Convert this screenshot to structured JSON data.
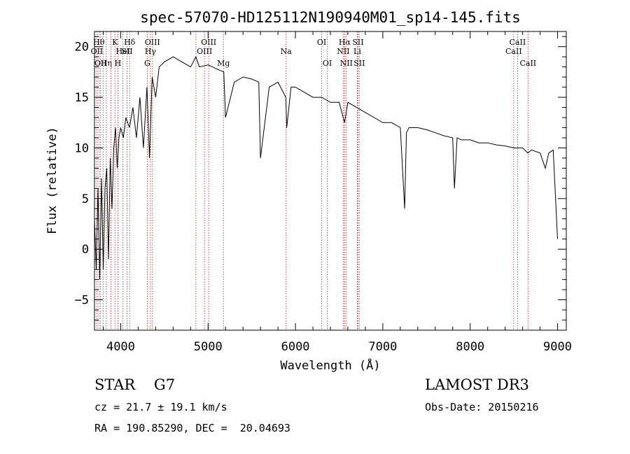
{
  "chart_data": {
    "type": "line",
    "title": "spec-57070-HD125112N190940M01_sp14-145.fits",
    "xlabel": "Wavelength (Å)",
    "ylabel": "Flux (relative)",
    "xlim": [
      3700,
      9100
    ],
    "ylim": [
      -8,
      21.5
    ],
    "xticks": [
      4000,
      5000,
      6000,
      7000,
      8000,
      9000
    ],
    "yticks": [
      -5,
      0,
      5,
      10,
      15,
      20
    ],
    "xtick_labels": [
      "4000",
      "5000",
      "6000",
      "7000",
      "8000",
      "9000"
    ],
    "ytick_labels": [
      "−5",
      "0",
      "5",
      "10",
      "15",
      "20"
    ],
    "grid": false,
    "series": [
      {
        "color": "#000000",
        "x": [
          3700,
          3720,
          3740,
          3760,
          3780,
          3800,
          3820,
          3840,
          3860,
          3880,
          3900,
          3920,
          3940,
          3960,
          3980,
          4000,
          4030,
          4060,
          4100,
          4140,
          4180,
          4220,
          4260,
          4300,
          4330,
          4360,
          4400,
          4440,
          4500,
          4600,
          4700,
          4800,
          4860,
          4900,
          5000,
          5100,
          5180,
          5200,
          5300,
          5400,
          5500,
          5580,
          5600,
          5700,
          5800,
          5890,
          5900,
          5950,
          6000,
          6100,
          6200,
          6300,
          6400,
          6500,
          6562,
          6600,
          6700,
          6800,
          6900,
          7000,
          7100,
          7200,
          7250,
          7270,
          7300,
          7400,
          7500,
          7600,
          7700,
          7800,
          7820,
          7850,
          7900,
          8000,
          8100,
          8200,
          8300,
          8400,
          8500,
          8540,
          8600,
          8660,
          8700,
          8800,
          8860,
          8900,
          8950,
          9000
        ],
        "y": [
          3,
          -2,
          6,
          -3,
          7,
          -2,
          6,
          8,
          -1,
          9,
          4,
          10,
          12,
          8,
          11,
          12,
          11,
          13,
          12,
          14,
          11,
          15,
          10,
          16,
          9,
          17,
          15,
          18,
          18.5,
          19,
          18.5,
          18,
          19,
          18,
          18.2,
          17.8,
          17.5,
          13,
          16.5,
          17,
          16.8,
          16.5,
          9,
          16,
          16.5,
          15,
          12,
          16,
          16,
          15.5,
          15,
          15,
          14.5,
          14.5,
          12.5,
          14.5,
          14,
          13.5,
          13,
          12.5,
          12.5,
          12,
          4,
          11.5,
          12,
          12,
          11.8,
          11.5,
          11.2,
          11,
          6,
          11,
          10.8,
          10.8,
          10.5,
          10.5,
          10.3,
          10.2,
          10,
          10,
          10,
          9.5,
          9.8,
          9.5,
          8,
          9.5,
          9.8,
          1
        ]
      }
    ],
    "spectral_lines": [
      {
        "wl": 3727,
        "label": "OII",
        "row": 2
      },
      {
        "wl": 3750,
        "label": "Hθ",
        "row": 1
      },
      {
        "wl": 3770,
        "label": "OII",
        "row": 3
      },
      {
        "wl": 3798,
        "label": "",
        "row": 0
      },
      {
        "wl": 3835,
        "label": "Hη",
        "row": 3
      },
      {
        "wl": 3889,
        "label": "",
        "row": 0
      },
      {
        "wl": 3934,
        "label": "K",
        "row": 1
      },
      {
        "wl": 3968,
        "label": "H",
        "row": 3
      },
      {
        "wl": 4026,
        "label": "HeI",
        "row": 2
      },
      {
        "wl": 4072,
        "label": "SII",
        "row": 2
      },
      {
        "wl": 4102,
        "label": "Hδ",
        "row": 1
      },
      {
        "wl": 4304,
        "label": "G",
        "row": 3
      },
      {
        "wl": 4340,
        "label": "Hγ",
        "row": 2
      },
      {
        "wl": 4363,
        "label": "OIII",
        "row": 1
      },
      {
        "wl": 4861,
        "label": "",
        "row": 0
      },
      {
        "wl": 4959,
        "label": "OIII",
        "row": 2
      },
      {
        "wl": 5007,
        "label": "OIII",
        "row": 1
      },
      {
        "wl": 5176,
        "label": "Mg",
        "row": 3
      },
      {
        "wl": 5893,
        "label": "Na",
        "row": 2
      },
      {
        "wl": 6300,
        "label": "OI",
        "row": 1
      },
      {
        "wl": 6364,
        "label": "OI",
        "row": 3
      },
      {
        "wl": 6548,
        "label": "NII",
        "row": 2
      },
      {
        "wl": 6563,
        "label": "Hα",
        "row": 1
      },
      {
        "wl": 6583,
        "label": "NII",
        "row": 3
      },
      {
        "wl": 6708,
        "label": "Li",
        "row": 2
      },
      {
        "wl": 6716,
        "label": "SII",
        "row": 1
      },
      {
        "wl": 6731,
        "label": "SII",
        "row": 3
      },
      {
        "wl": 8498,
        "label": "CaII",
        "row": 2
      },
      {
        "wl": 8542,
        "label": "CaII",
        "row": 1
      },
      {
        "wl": 8662,
        "label": "CaII",
        "row": 3
      }
    ]
  },
  "info": {
    "star_class": "STAR    G7",
    "survey": "LAMOST DR3",
    "cz": "cz = 21.7 ± 19.1 km/s",
    "obs_date": "Obs-Date: 20150216",
    "radec": "RA = 190.85290, DEC =  20.04693"
  }
}
